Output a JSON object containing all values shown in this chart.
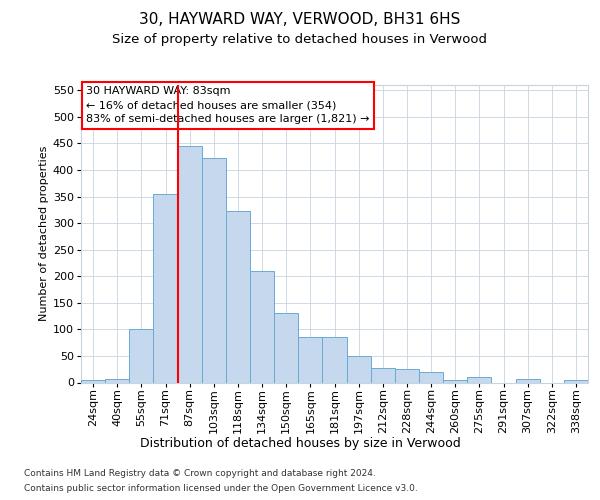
{
  "title1": "30, HAYWARD WAY, VERWOOD, BH31 6HS",
  "title2": "Size of property relative to detached houses in Verwood",
  "xlabel": "Distribution of detached houses by size in Verwood",
  "ylabel": "Number of detached properties",
  "categories": [
    "24sqm",
    "40sqm",
    "55sqm",
    "71sqm",
    "87sqm",
    "103sqm",
    "118sqm",
    "134sqm",
    "150sqm",
    "165sqm",
    "181sqm",
    "197sqm",
    "212sqm",
    "228sqm",
    "244sqm",
    "260sqm",
    "275sqm",
    "291sqm",
    "307sqm",
    "322sqm",
    "338sqm"
  ],
  "values": [
    5,
    7,
    100,
    354,
    445,
    422,
    322,
    210,
    130,
    85,
    85,
    50,
    28,
    25,
    20,
    5,
    10,
    0,
    6,
    0,
    4
  ],
  "bar_color": "#c5d8ee",
  "bar_edge_color": "#6aaad4",
  "red_line_x": 3.5,
  "annotation_line1": "30 HAYWARD WAY: 83sqm",
  "annotation_line2": "← 16% of detached houses are smaller (354)",
  "annotation_line3": "83% of semi-detached houses are larger (1,821) →",
  "annotation_box_color": "white",
  "annotation_box_edge_color": "red",
  "ylim_min": 0,
  "ylim_max": 560,
  "yticks": [
    0,
    50,
    100,
    150,
    200,
    250,
    300,
    350,
    400,
    450,
    500,
    550
  ],
  "footer1": "Contains HM Land Registry data © Crown copyright and database right 2024.",
  "footer2": "Contains public sector information licensed under the Open Government Licence v3.0.",
  "fig_bg_color": "#ffffff",
  "plot_bg_color": "#ffffff",
  "grid_color": "#c8d4e0",
  "title1_fontsize": 11,
  "title2_fontsize": 9.5,
  "ylabel_fontsize": 8,
  "xlabel_fontsize": 9,
  "tick_fontsize": 8,
  "ann_fontsize": 8,
  "footer_fontsize": 6.5
}
